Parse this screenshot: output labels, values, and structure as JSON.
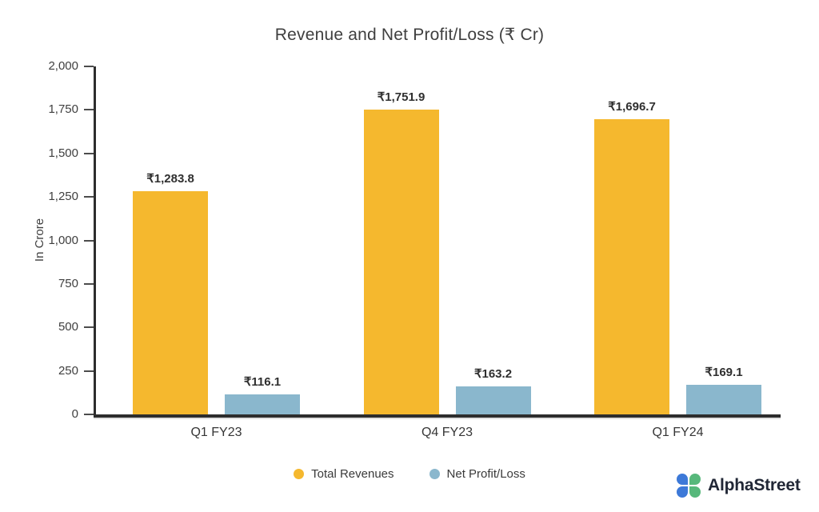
{
  "chart_data": {
    "type": "bar",
    "title": "Revenue and Net Profit/Loss (₹ Cr)",
    "ylabel": "In Crore",
    "ylim": [
      0,
      2000
    ],
    "yticks": [
      0,
      250,
      500,
      750,
      1000,
      1250,
      1500,
      1750,
      2000
    ],
    "ytick_labels": [
      "0",
      "250",
      "500",
      "750",
      "1,000",
      "1,250",
      "1,500",
      "1,750",
      "2,000"
    ],
    "categories": [
      "Q1 FY23",
      "Q4 FY23",
      "Q1 FY24"
    ],
    "series": [
      {
        "name": "Total Revenues",
        "color": "#F5B82E",
        "values": [
          1283.8,
          1751.9,
          1696.7
        ],
        "labels": [
          "₹1,283.8",
          "₹1,751.9",
          "₹1,696.7"
        ]
      },
      {
        "name": "Net Profit/Loss",
        "color": "#8AB7CD",
        "values": [
          116.1,
          163.2,
          169.1
        ],
        "labels": [
          "₹116.1",
          "₹163.2",
          "₹169.1"
        ]
      }
    ],
    "grid": false,
    "legend_position": "bottom"
  },
  "branding": {
    "logo_text": "AlphaStreet",
    "logo_blue": "#3D79D8",
    "logo_green": "#57B87B",
    "text_color": "#212736"
  }
}
